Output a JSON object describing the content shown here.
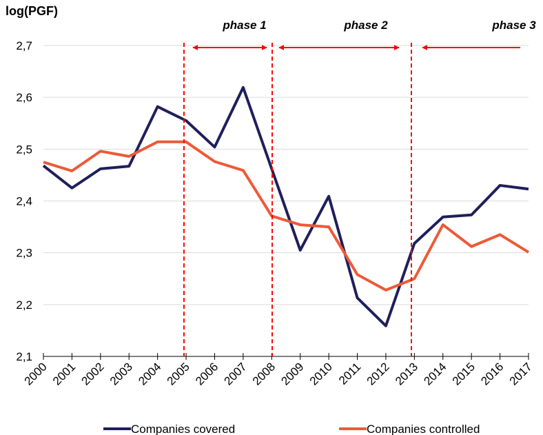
{
  "chart_data": {
    "type": "line",
    "title": "log(PGF)",
    "categories": [
      "2000",
      "2001",
      "2002",
      "2003",
      "2004",
      "2005",
      "2006",
      "2007",
      "2008",
      "2009",
      "2010",
      "2011",
      "2012",
      "2013",
      "2014",
      "2015",
      "2016",
      "2017"
    ],
    "series": [
      {
        "name": "Companies covered",
        "color": "#1f1f5c",
        "values": [
          2.468,
          2.425,
          2.462,
          2.467,
          2.582,
          2.555,
          2.504,
          2.619,
          2.462,
          2.305,
          2.409,
          2.213,
          2.159,
          2.318,
          2.369,
          2.373,
          2.43,
          2.423
        ]
      },
      {
        "name": "Companies controlled",
        "color": "#ec5a38",
        "values": [
          2.475,
          2.458,
          2.496,
          2.486,
          2.514,
          2.514,
          2.476,
          2.459,
          2.371,
          2.354,
          2.35,
          2.258,
          2.228,
          2.25,
          2.354,
          2.312,
          2.335,
          2.301
        ]
      }
    ],
    "ylim": [
      2.1,
      2.7
    ],
    "yticks": [
      {
        "value": 2.1,
        "label": "2,1"
      },
      {
        "value": 2.2,
        "label": "2,2"
      },
      {
        "value": 2.3,
        "label": "2,3"
      },
      {
        "value": 2.4,
        "label": "2,4"
      },
      {
        "value": 2.5,
        "label": "2,5"
      },
      {
        "value": 2.6,
        "label": "2,6"
      },
      {
        "value": 2.7,
        "label": "2,7"
      }
    ],
    "grid": true,
    "annotations": [
      "phase 1",
      "phase 2",
      "phase 3"
    ],
    "legend": "bottom"
  }
}
